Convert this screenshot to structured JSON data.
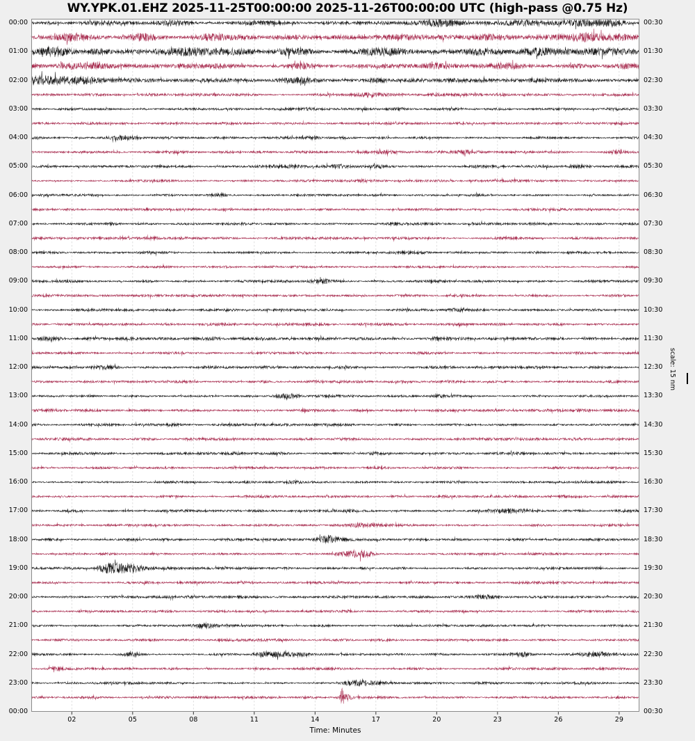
{
  "title": "WY.YPK.01.EHZ 2025-11-25T00:00:00 2025-11-26T00:00:00 UTC (high-pass @0.75 Hz)",
  "xlabel": "Time: Minutes",
  "scale_label": "scale: 15 nm",
  "colors": {
    "black_trace": "#151515",
    "red_trace": "#a5264a",
    "figure_background": "#efefef",
    "plot_background": "#ffffff",
    "grid": "#d7d7d7",
    "border": "#8a8a8a",
    "tick": "#333333"
  },
  "y_axis": {
    "left_labels": [
      "00:00",
      "01:00",
      "02:00",
      "03:00",
      "04:00",
      "05:00",
      "06:00",
      "07:00",
      "08:00",
      "09:00",
      "10:00",
      "11:00",
      "12:00",
      "13:00",
      "14:00",
      "15:00",
      "16:00",
      "17:00",
      "18:00",
      "19:00",
      "20:00",
      "21:00",
      "22:00",
      "23:00",
      "00:00"
    ],
    "right_labels": [
      "00:30",
      "01:30",
      "02:30",
      "03:30",
      "04:30",
      "05:30",
      "06:30",
      "07:30",
      "08:30",
      "09:30",
      "10:30",
      "11:30",
      "12:30",
      "13:30",
      "14:30",
      "15:30",
      "16:30",
      "17:30",
      "18:30",
      "19:30",
      "20:30",
      "21:30",
      "22:30",
      "23:30",
      "00:30"
    ]
  },
  "chart_data": {
    "type": "line",
    "subtype": "helicorder-seismogram",
    "station": "WY.YPK.01.EHZ",
    "time_range_utc": [
      "2025-11-25T00:00:00",
      "2025-11-26T00:00:00"
    ],
    "filter": "high-pass @0.75 Hz",
    "minutes_per_row": 30,
    "scale_nm": 15,
    "xlim": [
      0,
      30
    ],
    "x_tick_values": [
      2,
      5,
      8,
      11,
      14,
      17,
      20,
      23,
      26,
      29
    ],
    "x_tick_labels": [
      "02",
      "05",
      "08",
      "11",
      "14",
      "17",
      "20",
      "23",
      "26",
      "29"
    ],
    "grid": "vertical-dashed",
    "events_format": "each event = [minute_center, width_minutes, extra_amplitude_nm] added to base_amp_nm noise envelope",
    "rows": [
      {
        "time": "00:00",
        "color": "black",
        "base_amp_nm": 2.0,
        "events": [
          [
            3.5,
            0.5,
            1.5
          ],
          [
            7,
            0.6,
            2
          ],
          [
            11.4,
            0.5,
            1.8
          ],
          [
            20.3,
            1.2,
            3
          ],
          [
            24,
            0.8,
            2
          ],
          [
            27,
            1.0,
            3.2
          ],
          [
            28.7,
            0.5,
            2.5
          ]
        ]
      },
      {
        "time": "00:30",
        "color": "red",
        "base_amp_nm": 3.2,
        "events": [
          [
            2,
            0.8,
            2.5
          ],
          [
            5.3,
            0.7,
            2.5
          ],
          [
            9,
            0.5,
            1.8
          ],
          [
            13,
            0.6,
            1.5
          ],
          [
            18,
            0.8,
            2.2
          ],
          [
            22.5,
            0.6,
            1.8
          ],
          [
            27.4,
            0.6,
            4.5
          ],
          [
            29.2,
            0.4,
            2
          ]
        ]
      },
      {
        "time": "01:00",
        "color": "black",
        "base_amp_nm": 3.2,
        "events": [
          [
            1.1,
            0.5,
            4.5
          ],
          [
            3.3,
            0.4,
            3
          ],
          [
            8,
            1.5,
            2.8
          ],
          [
            13,
            0.6,
            2.5
          ],
          [
            17.4,
            0.7,
            3.8
          ],
          [
            22,
            0.7,
            2.2
          ],
          [
            24.8,
            0.7,
            3.2
          ],
          [
            28.5,
            0.8,
            2.8
          ]
        ]
      },
      {
        "time": "01:30",
        "color": "red",
        "base_amp_nm": 2.6,
        "events": [
          [
            2.1,
            0.5,
            2.2
          ],
          [
            3.1,
            0.4,
            2.2
          ],
          [
            9,
            0.7,
            2.2
          ],
          [
            13.2,
            0.5,
            2.2
          ],
          [
            20,
            0.6,
            2.2
          ],
          [
            23.3,
            0.6,
            2
          ],
          [
            29.3,
            0.4,
            2.8
          ]
        ]
      },
      {
        "time": "02:00",
        "color": "black",
        "base_amp_nm": 2.3,
        "events": [
          [
            0.5,
            0.5,
            3.2
          ],
          [
            1.6,
            0.6,
            2.8
          ],
          [
            2.8,
            0.4,
            2.2
          ],
          [
            13,
            0.6,
            2.8
          ],
          [
            17,
            0.4,
            1.2
          ],
          [
            21,
            0.4,
            1.2
          ]
        ]
      },
      {
        "time": "02:30",
        "color": "red",
        "base_amp_nm": 1.7,
        "events": [
          [
            16.5,
            0.5,
            2.2
          ],
          [
            20,
            0.3,
            1.2
          ],
          [
            23.2,
            0.3,
            1.2
          ]
        ]
      },
      {
        "time": "03:00",
        "color": "black",
        "base_amp_nm": 1.5,
        "events": [
          [
            13.6,
            0.4,
            1.3
          ],
          [
            18,
            0.3,
            1.1
          ]
        ]
      },
      {
        "time": "03:30",
        "color": "red",
        "base_amp_nm": 1.6,
        "events": [
          [
            17.5,
            0.3,
            0.9
          ],
          [
            26,
            0.3,
            0.8
          ]
        ]
      },
      {
        "time": "04:00",
        "color": "black",
        "base_amp_nm": 1.5,
        "events": [
          [
            4.6,
            0.5,
            1.8
          ],
          [
            13.9,
            0.3,
            1.1
          ]
        ]
      },
      {
        "time": "04:30",
        "color": "red",
        "base_amp_nm": 1.6,
        "events": [
          [
            17.5,
            0.4,
            1.7
          ],
          [
            21.5,
            0.3,
            1.3
          ],
          [
            28.9,
            0.3,
            1.8
          ]
        ]
      },
      {
        "time": "05:00",
        "color": "black",
        "base_amp_nm": 1.6,
        "events": [
          [
            12.5,
            0.5,
            1.7
          ],
          [
            15.2,
            0.4,
            1.7
          ],
          [
            17.2,
            0.3,
            1.3
          ],
          [
            27,
            0.4,
            1.3
          ]
        ]
      },
      {
        "time": "05:30",
        "color": "red",
        "base_amp_nm": 1.5,
        "events": [
          [
            16.5,
            0.3,
            1.0
          ]
        ]
      },
      {
        "time": "06:00",
        "color": "black",
        "base_amp_nm": 1.4,
        "events": [
          [
            9.2,
            0.3,
            1.1
          ],
          [
            22,
            0.3,
            1.0
          ]
        ]
      },
      {
        "time": "06:30",
        "color": "red",
        "base_amp_nm": 1.5,
        "events": []
      },
      {
        "time": "07:00",
        "color": "black",
        "base_amp_nm": 1.5,
        "events": [
          [
            4,
            0.3,
            1.0
          ],
          [
            18,
            0.3,
            1.0
          ]
        ]
      },
      {
        "time": "07:30",
        "color": "red",
        "base_amp_nm": 1.5,
        "events": [
          [
            6,
            0.3,
            1.0
          ]
        ]
      },
      {
        "time": "08:00",
        "color": "black",
        "base_amp_nm": 1.5,
        "events": [
          [
            19,
            0.4,
            1.1
          ]
        ]
      },
      {
        "time": "08:30",
        "color": "red",
        "base_amp_nm": 1.5,
        "events": []
      },
      {
        "time": "09:00",
        "color": "black",
        "base_amp_nm": 1.5,
        "events": [
          [
            14.3,
            0.5,
            1.9
          ]
        ]
      },
      {
        "time": "09:30",
        "color": "red",
        "base_amp_nm": 1.5,
        "events": []
      },
      {
        "time": "10:00",
        "color": "black",
        "base_amp_nm": 1.5,
        "events": [
          [
            21,
            0.3,
            1.0
          ]
        ]
      },
      {
        "time": "10:30",
        "color": "red",
        "base_amp_nm": 1.6,
        "events": []
      },
      {
        "time": "11:00",
        "color": "black",
        "base_amp_nm": 1.7,
        "events": [
          [
            1,
            0.4,
            1.3
          ],
          [
            9,
            0.4,
            1.3
          ],
          [
            20,
            0.3,
            1.1
          ]
        ]
      },
      {
        "time": "11:30",
        "color": "red",
        "base_amp_nm": 1.5,
        "events": []
      },
      {
        "time": "12:00",
        "color": "black",
        "base_amp_nm": 1.7,
        "events": [
          [
            3.5,
            0.5,
            1.3
          ],
          [
            25,
            0.4,
            1.1
          ]
        ]
      },
      {
        "time": "12:30",
        "color": "red",
        "base_amp_nm": 1.6,
        "events": [
          [
            14,
            0.3,
            1.0
          ]
        ]
      },
      {
        "time": "13:00",
        "color": "black",
        "base_amp_nm": 1.5,
        "events": [
          [
            12.7,
            0.4,
            1.6
          ],
          [
            20,
            0.3,
            1.1
          ]
        ]
      },
      {
        "time": "13:30",
        "color": "red",
        "base_amp_nm": 1.6,
        "events": [
          [
            27,
            0.3,
            1.1
          ]
        ]
      },
      {
        "time": "14:00",
        "color": "black",
        "base_amp_nm": 1.5,
        "events": [
          [
            7,
            0.3,
            1.0
          ]
        ]
      },
      {
        "time": "14:30",
        "color": "red",
        "base_amp_nm": 1.7,
        "events": []
      },
      {
        "time": "15:00",
        "color": "black",
        "base_amp_nm": 1.5,
        "events": [
          [
            10,
            0.3,
            1.0
          ],
          [
            17,
            0.3,
            1.0
          ]
        ]
      },
      {
        "time": "15:30",
        "color": "red",
        "base_amp_nm": 1.5,
        "events": []
      },
      {
        "time": "16:00",
        "color": "black",
        "base_amp_nm": 1.5,
        "events": [
          [
            13,
            0.3,
            1.0
          ]
        ]
      },
      {
        "time": "16:30",
        "color": "red",
        "base_amp_nm": 1.5,
        "events": []
      },
      {
        "time": "17:00",
        "color": "black",
        "base_amp_nm": 1.5,
        "events": [
          [
            23.9,
            0.7,
            2.3
          ]
        ]
      },
      {
        "time": "17:30",
        "color": "red",
        "base_amp_nm": 1.5,
        "events": [
          [
            16.2,
            0.3,
            2.6
          ],
          [
            17,
            0.4,
            1.7
          ]
        ]
      },
      {
        "time": "18:00",
        "color": "black",
        "base_amp_nm": 1.5,
        "events": [
          [
            14.6,
            0.3,
            3.8
          ],
          [
            15.2,
            0.4,
            1.7
          ]
        ]
      },
      {
        "time": "18:30",
        "color": "red",
        "base_amp_nm": 1.5,
        "events": [
          [
            15.9,
            0.5,
            2.4
          ],
          [
            16.5,
            0.3,
            1.7
          ]
        ]
      },
      {
        "time": "19:00",
        "color": "black",
        "base_amp_nm": 1.5,
        "events": [
          [
            3.7,
            0.3,
            2.8
          ],
          [
            4.3,
            0.5,
            4.6
          ],
          [
            5.1,
            0.3,
            2.2
          ]
        ]
      },
      {
        "time": "19:30",
        "color": "red",
        "base_amp_nm": 1.5,
        "events": []
      },
      {
        "time": "20:00",
        "color": "black",
        "base_amp_nm": 1.5,
        "events": [
          [
            22.4,
            0.4,
            1.7
          ]
        ]
      },
      {
        "time": "20:30",
        "color": "red",
        "base_amp_nm": 1.5,
        "events": []
      },
      {
        "time": "21:00",
        "color": "black",
        "base_amp_nm": 1.5,
        "events": [
          [
            8.5,
            0.4,
            1.4
          ]
        ]
      },
      {
        "time": "21:30",
        "color": "red",
        "base_amp_nm": 1.5,
        "events": []
      },
      {
        "time": "22:00",
        "color": "black",
        "base_amp_nm": 1.5,
        "events": [
          [
            5,
            0.3,
            1.7
          ],
          [
            11.5,
            0.4,
            2.1
          ],
          [
            12.4,
            0.5,
            2.6
          ],
          [
            13.3,
            0.3,
            1.9
          ],
          [
            24.3,
            0.3,
            1.7
          ],
          [
            28,
            0.6,
            2.4
          ]
        ]
      },
      {
        "time": "22:30",
        "color": "red",
        "base_amp_nm": 1.5,
        "events": [
          [
            1.2,
            0.3,
            2.1
          ]
        ]
      },
      {
        "time": "23:00",
        "color": "black",
        "base_amp_nm": 1.5,
        "events": [
          [
            15.9,
            0.4,
            3.2
          ],
          [
            16.6,
            0.4,
            1.9
          ]
        ]
      },
      {
        "time": "23:30",
        "color": "red",
        "base_amp_nm": 1.5,
        "events": [
          [
            15.35,
            0.07,
            13
          ],
          [
            15.55,
            0.2,
            2.5
          ]
        ]
      }
    ]
  }
}
